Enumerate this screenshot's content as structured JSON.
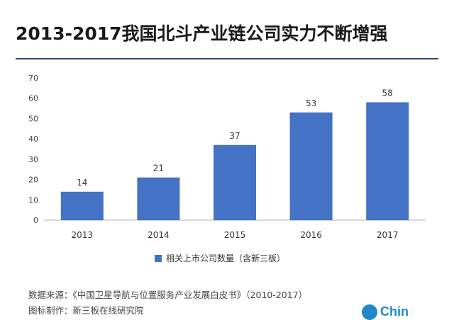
{
  "title": "2013-2017我国北斗产业链公司实力不断增强",
  "chart_data": {
    "type": "bar",
    "categories": [
      "2013",
      "2014",
      "2015",
      "2016",
      "2017"
    ],
    "series": [
      {
        "name": "相关上市公司数量（含新三板）",
        "values": [
          14,
          21,
          37,
          53,
          58
        ]
      }
    ],
    "ylim": [
      0,
      70
    ],
    "yticks": [
      0,
      10,
      20,
      30,
      40,
      50,
      60,
      70
    ],
    "grid": false,
    "legend_position": "bottom",
    "bar_color": "#4472c4"
  },
  "footer": {
    "source": "数据来源：《中国卫星导航与位置服务产业发展白皮书》（2010-2017）",
    "credit": "图标制作：新三板在线研究院"
  },
  "logo": {
    "text": "Chin"
  },
  "colors": {
    "accent": "#2f4a6d",
    "bar": "#4472c4",
    "logo": "#1e88c9"
  }
}
